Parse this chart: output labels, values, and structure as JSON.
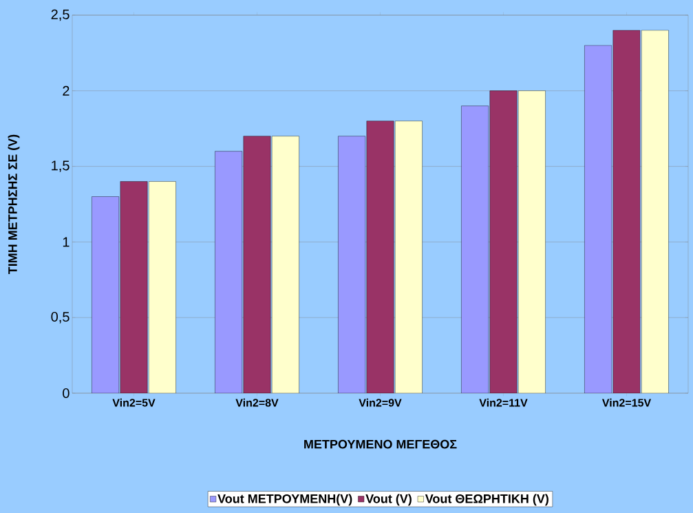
{
  "chart_data": {
    "type": "bar",
    "xlabel": "ΜΕΤΡΟΥΜΕΝΟ ΜΕΓΕΘΟΣ",
    "ylabel": "ΤΙΜΗ ΜΕΤΡΗΣΗΣ ΣΕ (V)",
    "categories": [
      "Vin2=5V",
      "Vin2=8V",
      "Vin2=9V",
      "Vin2=11V",
      "Vin2=15V"
    ],
    "series": [
      {
        "name": "Vout ΜΕΤΡΟΥΜΕΝΗ(V)",
        "color": "#9999ff",
        "values": [
          1.3,
          1.6,
          1.7,
          1.9,
          2.3
        ]
      },
      {
        "name": "Vout (V)",
        "color": "#993366",
        "values": [
          1.4,
          1.7,
          1.8,
          2.0,
          2.4
        ]
      },
      {
        "name": "Vout ΘΕΩΡΗΤΙΚΗ (V)",
        "color": "#ffffcc",
        "values": [
          1.4,
          1.7,
          1.8,
          2.0,
          2.4
        ]
      }
    ],
    "ylim": [
      0,
      2.5
    ],
    "yticks": [
      0,
      {
        "value": 0.5,
        "label": "0,5"
      },
      1,
      {
        "value": 1.5,
        "label": "1,5"
      },
      2,
      {
        "value": 2.5,
        "label": "2,5"
      }
    ],
    "grid": "y",
    "legend": "bottom"
  }
}
